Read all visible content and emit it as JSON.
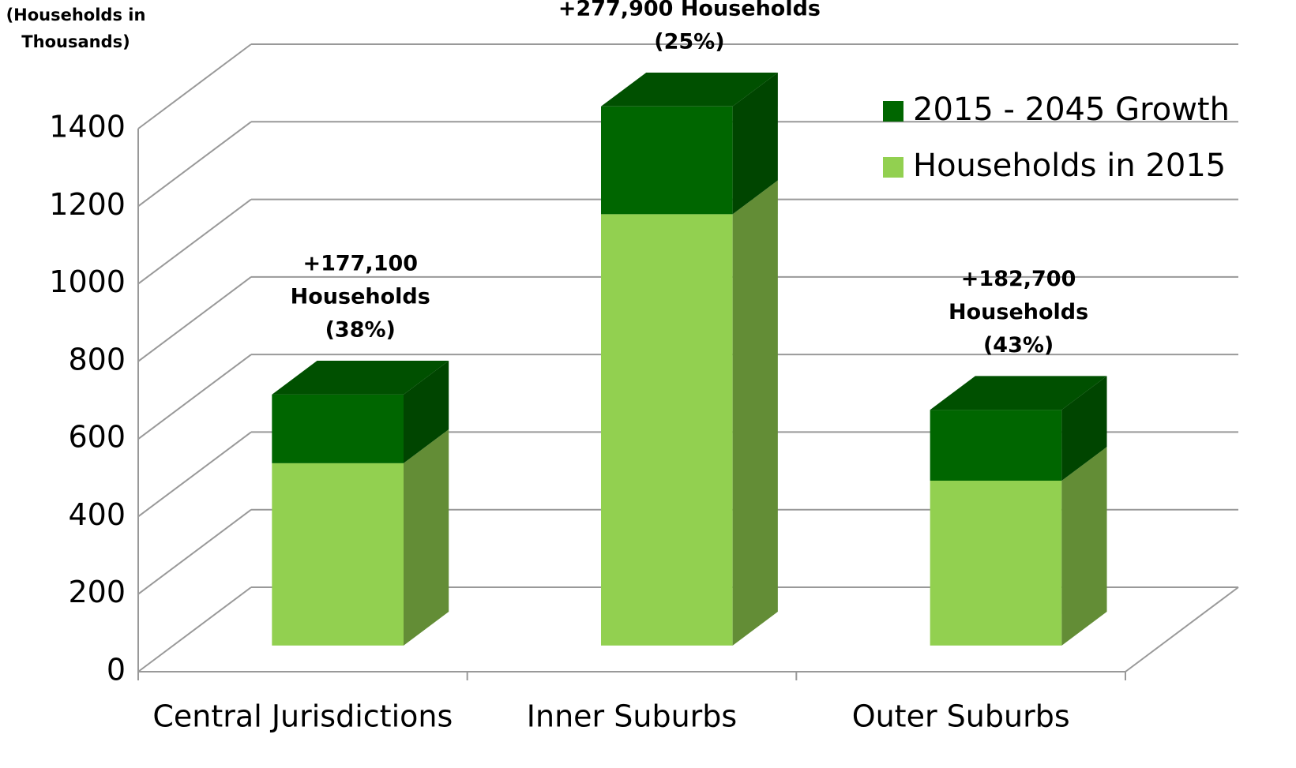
{
  "chart_data": {
    "type": "bar3d_stacked",
    "y_label": [
      "(Households in",
      "Thousands)"
    ],
    "categories": [
      "Central Jurisdictions",
      "Inner Suburbs",
      "Outer Suburbs"
    ],
    "series": [
      {
        "name": "Households in 2015",
        "color": "#92d050",
        "values": [
          470,
          1112,
          425
        ]
      },
      {
        "name": "2015 - 2045 Growth",
        "color": "#006600",
        "values": [
          177.1,
          277.9,
          182.7
        ]
      }
    ],
    "annotations": [
      [
        "+177,100",
        "Households",
        "(38%)"
      ],
      [
        "+277,900 Households",
        "(25%)"
      ],
      [
        "+182,700",
        "Households",
        "(43%)"
      ]
    ],
    "ylim": [
      0,
      1400
    ],
    "yticks": [
      0,
      200,
      400,
      600,
      800,
      1000,
      1200,
      1400
    ],
    "grid": true,
    "legend": "top-right"
  }
}
